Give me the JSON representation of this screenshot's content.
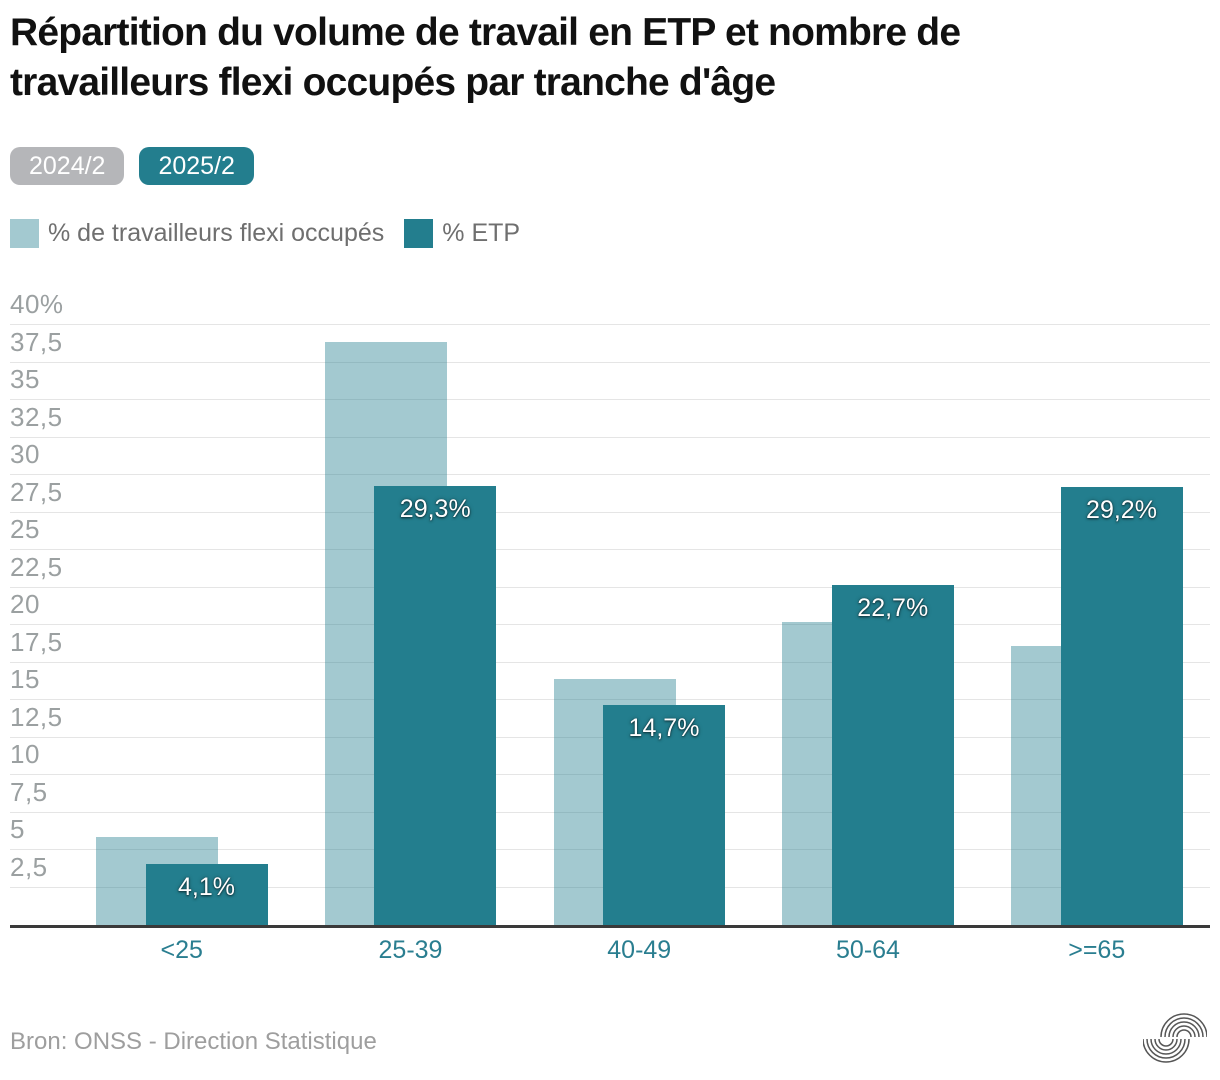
{
  "page": {
    "title": "Répartition du volume de travail en ETP et nombre de travailleurs flexi occupés par tranche d'âge",
    "source": "Bron: ONSS - Direction Statistique"
  },
  "tabs": [
    {
      "label": "2024/2",
      "selected": false
    },
    {
      "label": "2025/2",
      "selected": true
    }
  ],
  "legend": [
    {
      "label": "% de travailleurs flexi occupés",
      "color": "rgba(35,126,142,0.42)"
    },
    {
      "label": "% ETP",
      "color": "#237e8e"
    }
  ],
  "colors": {
    "accent_teal": "#237e8e",
    "light_teal_equivalent": "#a4cad2",
    "inactive_tab_gray": "#b5b6b9",
    "axis_label_gray": "#9ba0a1",
    "category_label_teal": "#2a7e90",
    "gridline": "#e5e5e5",
    "axis_line": "#3a3a3a",
    "title_text": "#111111",
    "source_text": "#9e9e9e"
  },
  "logo": {
    "name": "onss-arcs-logo"
  },
  "chart_data": {
    "type": "bar",
    "title": "Répartition du volume de travail en ETP et nombre de travailleurs flexi occupés par tranche d'âge",
    "categories": [
      "<25",
      "25-39",
      "40-49",
      "50-64",
      ">=65"
    ],
    "series": [
      {
        "name": "% de travailleurs flexi occupés",
        "color": "rgba(35,126,142,0.42)",
        "values": [
          5.9,
          38.9,
          16.4,
          20.2,
          18.6
        ]
      },
      {
        "name": "% ETP",
        "color": "#237e8e",
        "values": [
          4.1,
          29.3,
          14.7,
          22.7,
          29.2
        ],
        "value_labels": [
          "4,1%",
          "29,3%",
          "14,7%",
          "22,7%",
          "29,2%"
        ]
      }
    ],
    "xlabel": "",
    "ylabel": "",
    "ylim": [
      0,
      40
    ],
    "ytick_step": 2.5,
    "ytick_labels": [
      "40%",
      "37,5",
      "35",
      "32,5",
      "30",
      "27,5",
      "25",
      "22,5",
      "20",
      "17,5",
      "15",
      "12,5",
      "10",
      "7,5",
      "5",
      "2,5"
    ],
    "grid": true,
    "legend_position": "top-left",
    "selected_period": "2025/2"
  }
}
